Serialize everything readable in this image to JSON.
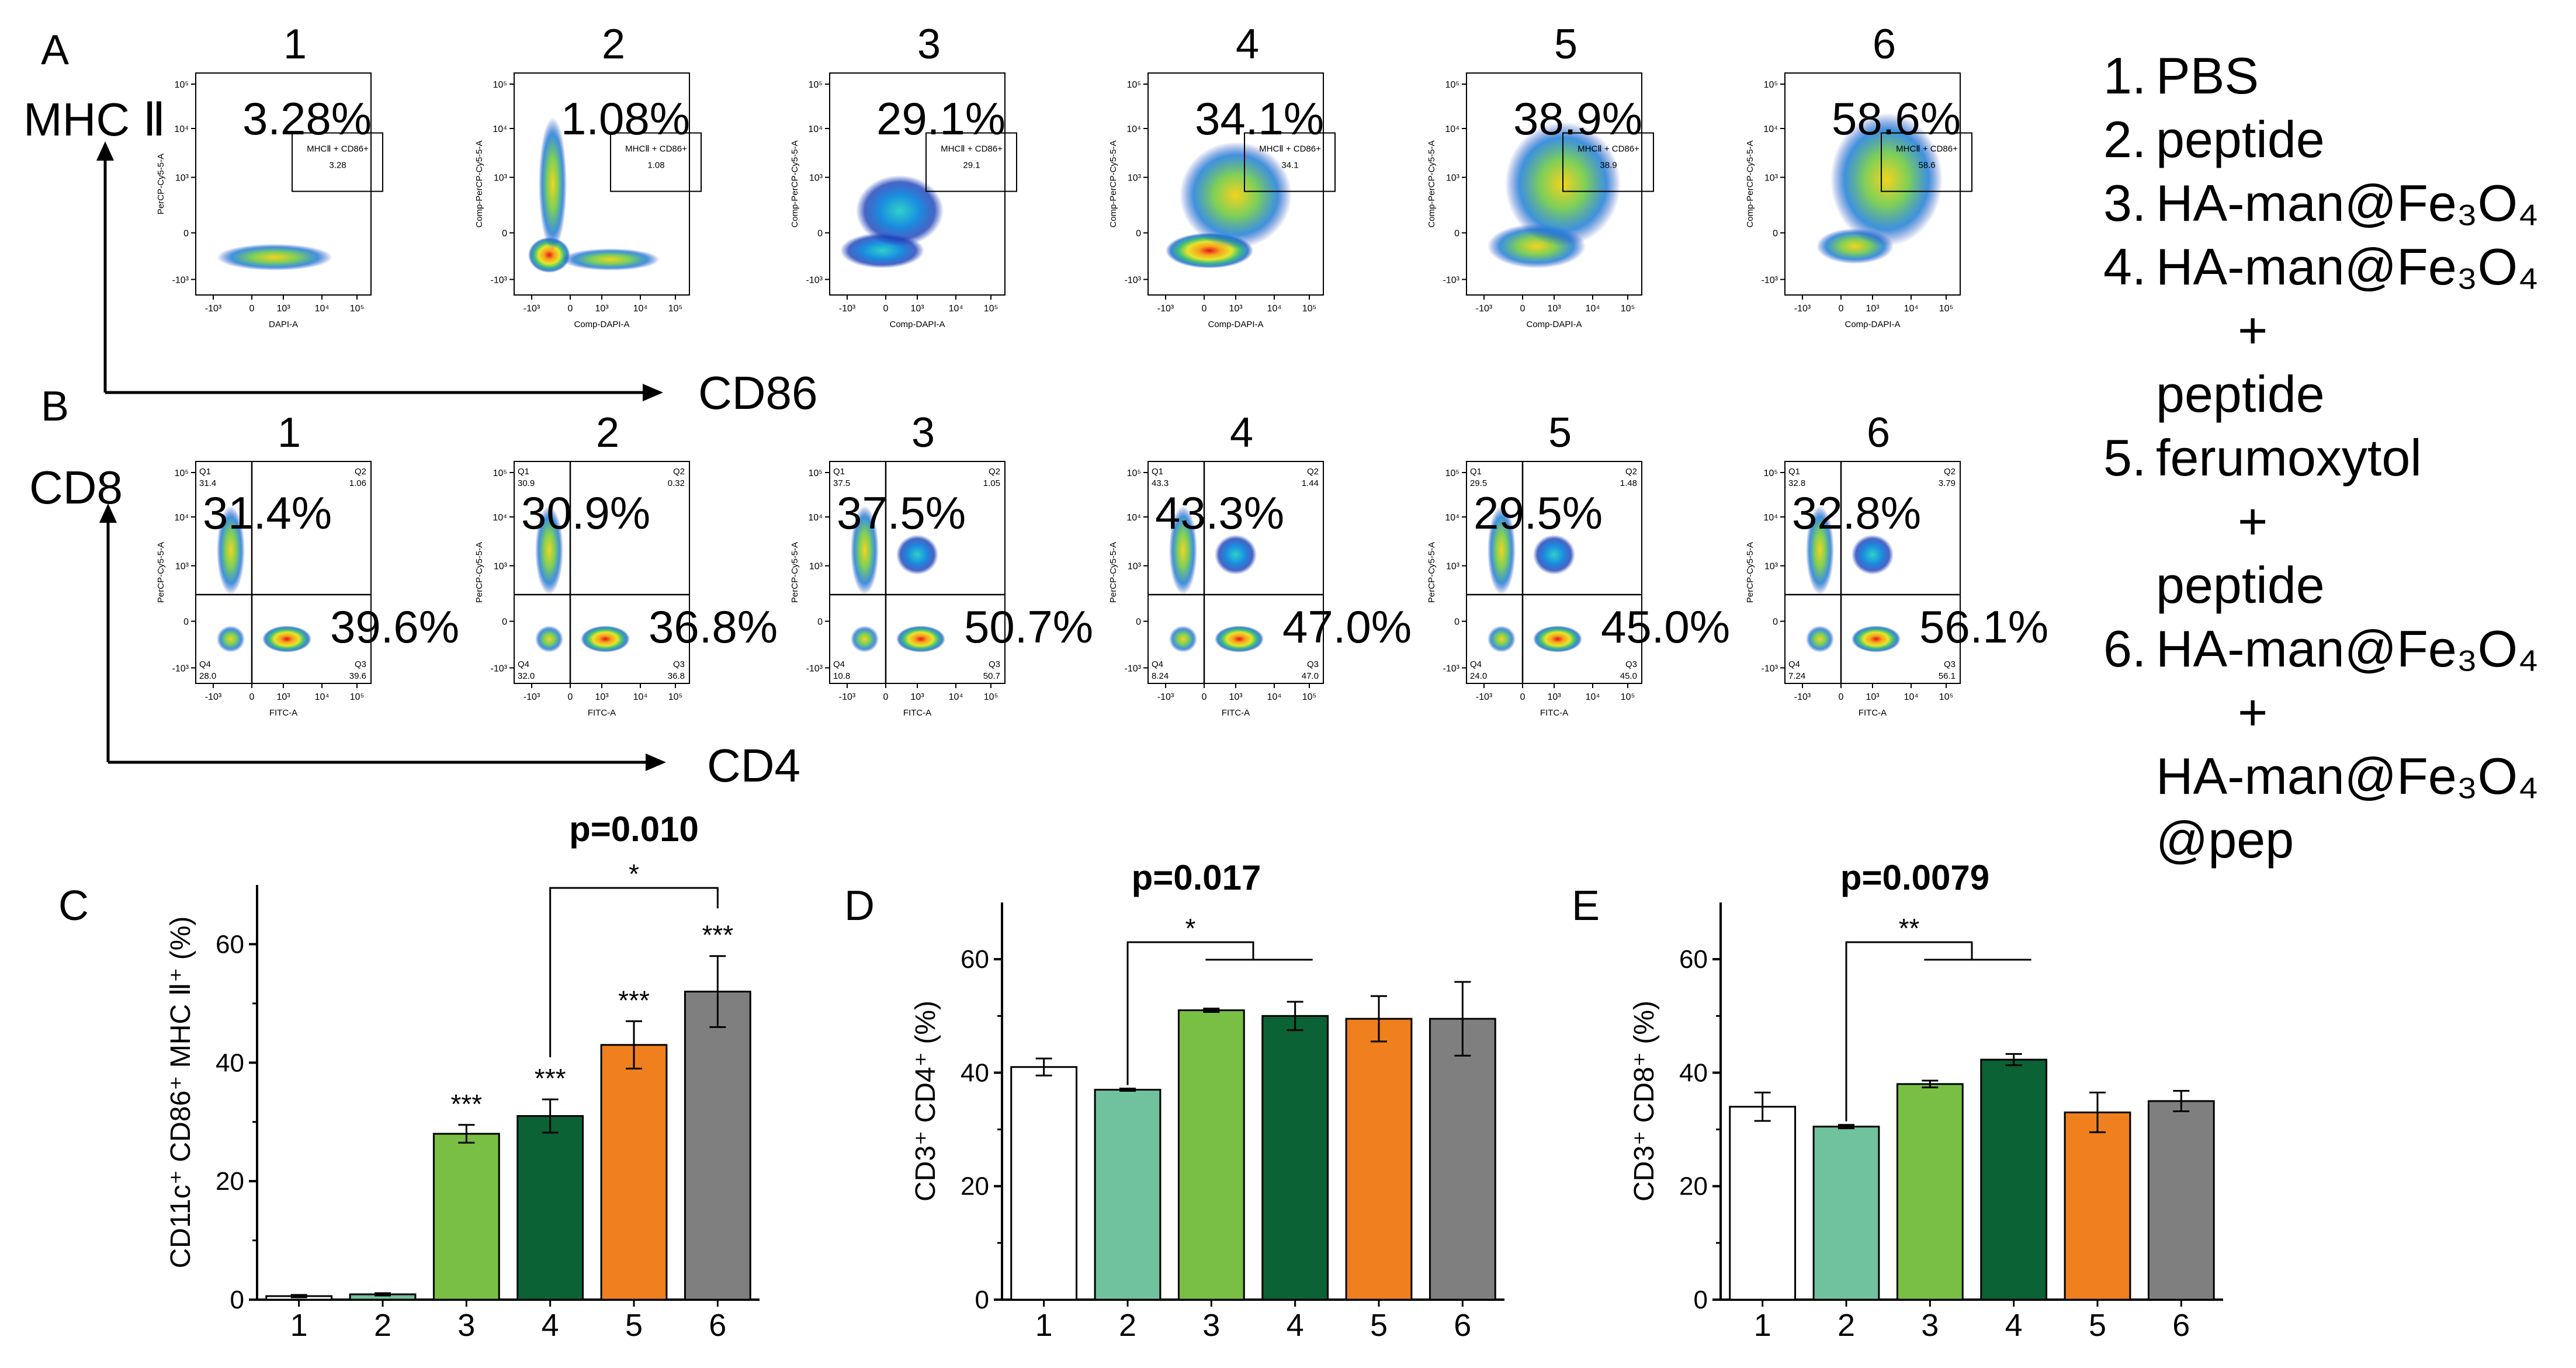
{
  "panel_letters": {
    "A": "A",
    "B": "B",
    "C": "C",
    "D": "D",
    "E": "E"
  },
  "row_A": {
    "y_axis_label": "MHC Ⅱ",
    "x_axis_label": "CD86",
    "plots": [
      {
        "id": "1",
        "pct": "3.28%",
        "gate_name": "MHCⅡ + CD86+",
        "gate_value": "3.28",
        "ylabel": "PerCP-Cy5-5-A",
        "xlabel": "DAPI-A"
      },
      {
        "id": "2",
        "pct": "1.08%",
        "gate_name": "MHCⅡ + CD86+",
        "gate_value": "1.08",
        "ylabel": "Comp-PerCP-Cy5-5-A",
        "xlabel": "Comp-DAPI-A"
      },
      {
        "id": "3",
        "pct": "29.1%",
        "gate_name": "MHCⅡ + CD86+",
        "gate_value": "29.1",
        "ylabel": "Comp-PerCP-Cy5-5-A",
        "xlabel": "Comp-DAPI-A"
      },
      {
        "id": "4",
        "pct": "34.1%",
        "gate_name": "MHCⅡ + CD86+",
        "gate_value": "34.1",
        "ylabel": "Comp-PerCP-Cy5-5-A",
        "xlabel": "Comp-DAPI-A"
      },
      {
        "id": "5",
        "pct": "38.9%",
        "gate_name": "MHCⅡ + CD86+",
        "gate_value": "38.9",
        "ylabel": "Comp-PerCP-Cy5-5-A",
        "xlabel": "Comp-DAPI-A"
      },
      {
        "id": "6",
        "pct": "58.6%",
        "gate_name": "MHCⅡ + CD86+",
        "gate_value": "58.6",
        "ylabel": "Comp-PerCP-Cy5-5-A",
        "xlabel": "Comp-DAPI-A"
      }
    ],
    "y_ticks": [
      "10⁵",
      "10⁴",
      "10³",
      "0",
      "-10³"
    ],
    "x_ticks": [
      "-10³",
      "0",
      "10³",
      "10⁴",
      "10⁵"
    ]
  },
  "row_B": {
    "y_axis_label": "CD8",
    "x_axis_label": "CD4",
    "plots": [
      {
        "id": "1",
        "q1_pct": "31.4%",
        "q3_pct": "39.6%",
        "q1": "31.4",
        "q2": "1.06",
        "q3": "39.6",
        "q4": "28.0"
      },
      {
        "id": "2",
        "q1_pct": "30.9%",
        "q3_pct": "36.8%",
        "q1": "30.9",
        "q2": "0.32",
        "q3": "36.8",
        "q4": "32.0"
      },
      {
        "id": "3",
        "q1_pct": "37.5%",
        "q3_pct": "50.7%",
        "q1": "37.5",
        "q2": "1.05",
        "q3": "50.7",
        "q4": "10.8"
      },
      {
        "id": "4",
        "q1_pct": "43.3%",
        "q3_pct": "47.0%",
        "q1": "43.3",
        "q2": "1.44",
        "q3": "47.0",
        "q4": "8.24"
      },
      {
        "id": "5",
        "q1_pct": "29.5%",
        "q3_pct": "45.0%",
        "q1": "29.5",
        "q2": "1.48",
        "q3": "45.0",
        "q4": "24.0"
      },
      {
        "id": "6",
        "q1_pct": "32.8%",
        "q3_pct": "56.1%",
        "q1": "32.8",
        "q2": "3.79",
        "q3": "56.1",
        "q4": "7.24"
      }
    ],
    "quad_labels": [
      "Q1",
      "Q2",
      "Q3",
      "Q4"
    ],
    "ylabel": "PerCP-Cy5-5-A",
    "xlabel": "FITC-A"
  },
  "legend": [
    {
      "num": "1.",
      "text": "PBS"
    },
    {
      "num": "2.",
      "text": "peptide"
    },
    {
      "num": "3.",
      "text": "HA-man@Fe₃O₄"
    },
    {
      "num": "4.",
      "text": "HA-man@Fe₃O₄"
    },
    {
      "num": "",
      "text": "+",
      "plus": true
    },
    {
      "num": "",
      "text": "peptide"
    },
    {
      "num": "5.",
      "text": "ferumoxytol"
    },
    {
      "num": "",
      "text": "+",
      "plus": true
    },
    {
      "num": "",
      "text": "peptide"
    },
    {
      "num": "6.",
      "text": "HA-man@Fe₃O₄"
    },
    {
      "num": "",
      "text": "+",
      "plus": true
    },
    {
      "num": "",
      "text": "HA-man@Fe₃O₄"
    },
    {
      "num": "",
      "text": "@pep"
    }
  ],
  "colors": [
    "#ffffff",
    "#70c19e",
    "#78bf43",
    "#0b6234",
    "#f07f1e",
    "#7f7f7f"
  ],
  "chart_data": [
    {
      "panel": "C",
      "type": "bar",
      "categories": [
        "1",
        "2",
        "3",
        "4",
        "5",
        "6"
      ],
      "values": [
        0.6,
        0.9,
        28,
        31,
        43,
        52
      ],
      "errors": [
        0.2,
        0.2,
        1.5,
        2.8,
        4,
        6
      ],
      "ylabel": "CD11c⁺ CD86⁺ MHC Ⅱ⁺ (%)",
      "ylim": [
        0,
        70
      ],
      "yticks": [
        0,
        20,
        40,
        60
      ],
      "significance": [
        "",
        "",
        "***",
        "***",
        "***",
        "***"
      ],
      "bracket": {
        "from": 4,
        "to": 6,
        "stars": "*",
        "p_text": "p=0.010"
      }
    },
    {
      "panel": "D",
      "type": "bar",
      "categories": [
        "1",
        "2",
        "3",
        "4",
        "5",
        "6"
      ],
      "values": [
        41,
        37,
        51,
        50,
        49.5,
        49.5
      ],
      "errors": [
        1.5,
        0.2,
        0.3,
        2.5,
        4,
        6.5
      ],
      "ylabel": "CD3⁺ CD4⁺ (%)",
      "ylim": [
        0,
        70
      ],
      "yticks": [
        0,
        20,
        40,
        60
      ],
      "significance": [
        "",
        "",
        "",
        "",
        "",
        ""
      ],
      "bracket": {
        "from": 2,
        "to": 3,
        "to_end": 4,
        "stars": "*",
        "p_text": "p=0.017"
      }
    },
    {
      "panel": "E",
      "type": "bar",
      "categories": [
        "1",
        "2",
        "3",
        "4",
        "5",
        "6"
      ],
      "values": [
        34,
        30.5,
        38,
        42.3,
        33,
        35
      ],
      "errors": [
        2.5,
        0.3,
        0.6,
        1,
        3.5,
        1.8
      ],
      "ylabel": "CD3⁺ CD8⁺ (%)",
      "ylim": [
        0,
        70
      ],
      "yticks": [
        0,
        20,
        40,
        60
      ],
      "significance": [
        "",
        "",
        "",
        "",
        "",
        ""
      ],
      "bracket": {
        "from": 2,
        "to": 3,
        "to_end": 4,
        "stars": "**",
        "p_text": "p=0.0079"
      }
    }
  ]
}
